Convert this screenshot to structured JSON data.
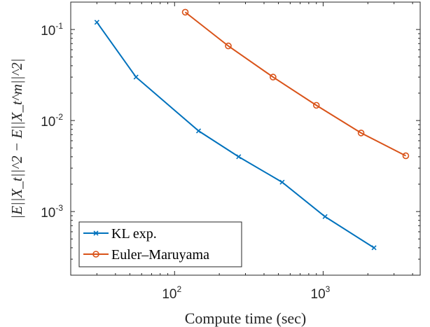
{
  "chart_data": {
    "type": "line",
    "xscale": "log",
    "yscale": "log",
    "xlim": [
      20,
      4500
    ],
    "ylim": [
      0.0002,
      0.2
    ],
    "xlabel": "Compute time (sec)",
    "ylabel": "|E||X_t||^2 − E||X_t^m||^2|",
    "x_ticks": [
      {
        "value": 100,
        "base": "10",
        "exp": "2"
      },
      {
        "value": 1000,
        "base": "10",
        "exp": "3"
      }
    ],
    "y_ticks": [
      {
        "value": 0.001,
        "base": "10",
        "exp": "-3"
      },
      {
        "value": 0.01,
        "base": "10",
        "exp": "-2"
      },
      {
        "value": 0.1,
        "base": "10",
        "exp": "-1"
      }
    ],
    "grid": false,
    "legend_position": "bottom-left",
    "series": [
      {
        "name": "KL exp.",
        "color": "#0072BD",
        "marker": "x",
        "x": [
          30,
          55,
          145,
          270,
          530,
          1030,
          2200
        ],
        "y": [
          0.12,
          0.03,
          0.0077,
          0.004,
          0.0021,
          0.00088,
          0.0004
        ]
      },
      {
        "name": "Euler–Maruyama",
        "color": "#D95319",
        "marker": "o",
        "x": [
          118,
          230,
          460,
          900,
          1800,
          3600
        ],
        "y": [
          0.155,
          0.066,
          0.03,
          0.0147,
          0.0073,
          0.0041
        ]
      }
    ]
  }
}
